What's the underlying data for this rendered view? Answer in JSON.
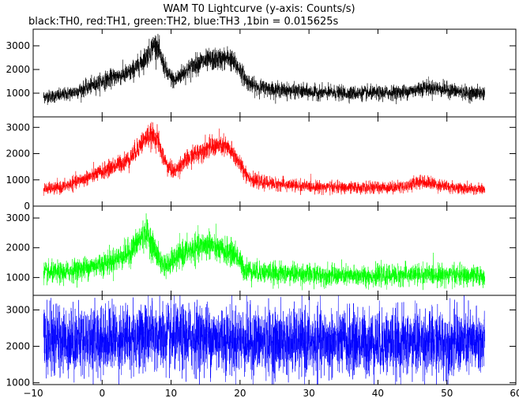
{
  "chart_data": {
    "type": "line",
    "title": "WAM T0 Lightcurve (y-axis: Counts/s)",
    "subtitle": "black:TH0, red:TH1, green:TH2, blue:TH3 ,1bin = 0.015625s",
    "x_range": [
      -10,
      60
    ],
    "x_ticks": [
      -10,
      0,
      10,
      20,
      30,
      40,
      50,
      60
    ],
    "grid": false,
    "legend": "none",
    "panels": [
      {
        "series": "TH0",
        "color": "#000000",
        "ylim": [
          0,
          3700
        ],
        "yticks": [
          1000,
          2000,
          3000
        ],
        "noise": 180,
        "points": [
          [
            -8.5,
            850
          ],
          [
            -6,
            900
          ],
          [
            -4,
            1050
          ],
          [
            -2,
            1250
          ],
          [
            0,
            1500
          ],
          [
            2,
            1700
          ],
          [
            4,
            1850
          ],
          [
            5,
            2100
          ],
          [
            6,
            2400
          ],
          [
            6.8,
            2700
          ],
          [
            7.5,
            3050
          ],
          [
            8,
            3000
          ],
          [
            8.5,
            2500
          ],
          [
            9.5,
            1800
          ],
          [
            10.5,
            1500
          ],
          [
            11.5,
            1800
          ],
          [
            13,
            2100
          ],
          [
            14,
            2300
          ],
          [
            16,
            2400
          ],
          [
            17.5,
            2450
          ],
          [
            18.5,
            2500
          ],
          [
            19,
            2300
          ],
          [
            20,
            2000
          ],
          [
            21,
            1500
          ],
          [
            22,
            1300
          ],
          [
            25,
            1150
          ],
          [
            30,
            1050
          ],
          [
            35,
            1000
          ],
          [
            40,
            1000
          ],
          [
            44,
            1050
          ],
          [
            47,
            1250
          ],
          [
            50,
            1150
          ],
          [
            53,
            1000
          ],
          [
            55.5,
            1000
          ]
        ]
      },
      {
        "series": "TH1",
        "color": "#ff0000",
        "ylim": [
          0,
          3400
        ],
        "yticks": [
          0,
          1000,
          2000,
          3000
        ],
        "noise": 160,
        "points": [
          [
            -8.5,
            650
          ],
          [
            -6,
            700
          ],
          [
            -4,
            900
          ],
          [
            -2,
            1100
          ],
          [
            0,
            1300
          ],
          [
            2,
            1550
          ],
          [
            4,
            1800
          ],
          [
            5,
            2150
          ],
          [
            6,
            2500
          ],
          [
            7,
            2700
          ],
          [
            8,
            2600
          ],
          [
            8.5,
            2100
          ],
          [
            9.5,
            1500
          ],
          [
            10.5,
            1300
          ],
          [
            11.5,
            1600
          ],
          [
            13,
            1900
          ],
          [
            15,
            2200
          ],
          [
            17,
            2300
          ],
          [
            18,
            2250
          ],
          [
            19,
            2000
          ],
          [
            20,
            1600
          ],
          [
            21,
            1200
          ],
          [
            22,
            950
          ],
          [
            25,
            850
          ],
          [
            30,
            750
          ],
          [
            35,
            700
          ],
          [
            40,
            700
          ],
          [
            44,
            750
          ],
          [
            46,
            950
          ],
          [
            48,
            850
          ],
          [
            50,
            750
          ],
          [
            53,
            650
          ],
          [
            55.5,
            650
          ]
        ]
      },
      {
        "series": "TH2",
        "color": "#00ff00",
        "ylim": [
          400,
          3400
        ],
        "yticks": [
          1000,
          2000,
          3000
        ],
        "noise": 200,
        "points": [
          [
            -8.5,
            1150
          ],
          [
            -6,
            1150
          ],
          [
            -4,
            1250
          ],
          [
            -2,
            1350
          ],
          [
            0,
            1450
          ],
          [
            2,
            1600
          ],
          [
            4,
            1850
          ],
          [
            5.5,
            2300
          ],
          [
            6.5,
            2500
          ],
          [
            7.5,
            2000
          ],
          [
            8.5,
            1500
          ],
          [
            9.5,
            1400
          ],
          [
            11,
            1700
          ],
          [
            12.5,
            1900
          ],
          [
            14,
            2000
          ],
          [
            15.5,
            2150
          ],
          [
            17,
            1900
          ],
          [
            18.5,
            1850
          ],
          [
            19.5,
            1750
          ],
          [
            20.5,
            1300
          ],
          [
            22,
            1200
          ],
          [
            25,
            1150
          ],
          [
            30,
            1100
          ],
          [
            35,
            1050
          ],
          [
            40,
            1050
          ],
          [
            45,
            1100
          ],
          [
            50,
            1100
          ],
          [
            53,
            1050
          ],
          [
            55.5,
            1050
          ]
        ]
      },
      {
        "series": "TH3",
        "color": "#0000ff",
        "ylim": [
          950,
          3400
        ],
        "yticks": [
          1000,
          2000,
          3000
        ],
        "noise": 380,
        "points": [
          [
            -8.5,
            2150
          ],
          [
            0,
            2200
          ],
          [
            5,
            2250
          ],
          [
            7,
            2300
          ],
          [
            10,
            2200
          ],
          [
            15,
            2250
          ],
          [
            20,
            2150
          ],
          [
            30,
            2100
          ],
          [
            40,
            2100
          ],
          [
            50,
            2100
          ],
          [
            55.5,
            2100
          ]
        ]
      }
    ]
  }
}
